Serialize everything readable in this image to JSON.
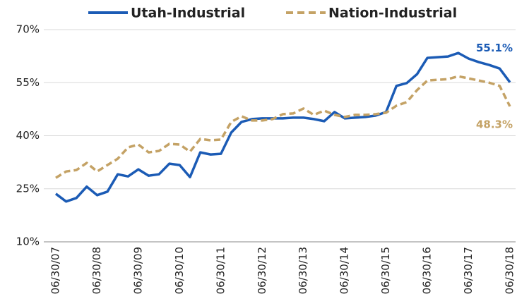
{
  "chart_data": {
    "type": "line",
    "categories": [
      "06/30/07",
      null,
      null,
      null,
      "06/30/08",
      null,
      null,
      null,
      "06/30/09",
      null,
      null,
      null,
      "06/30/10",
      null,
      null,
      null,
      "06/30/11",
      null,
      null,
      null,
      "06/30/12",
      null,
      null,
      null,
      "06/30/13",
      null,
      null,
      null,
      "06/30/14",
      null,
      null,
      null,
      "06/30/15",
      null,
      null,
      null,
      "06/30/16",
      null,
      null,
      null,
      "06/30/17",
      null,
      null,
      null,
      "06/30/18"
    ],
    "series": [
      {
        "name": "Utah-Industrial",
        "color": "#1b5bb5",
        "dash": false,
        "values": [
          23.6,
          21.4,
          22.4,
          25.6,
          23.2,
          24.2,
          29.1,
          28.5,
          30.5,
          28.7,
          29.1,
          32.1,
          31.7,
          28.3,
          35.3,
          34.7,
          34.9,
          40.9,
          43.9,
          44.7,
          44.9,
          44.9,
          44.9,
          45.1,
          45.1,
          44.7,
          44.1,
          46.7,
          44.9,
          45.1,
          45.3,
          45.7,
          46.7,
          54.1,
          54.9,
          57.4,
          62.0,
          62.2,
          62.4,
          63.4,
          61.8,
          60.8,
          60.0,
          59.0,
          55.1
        ],
        "value_labels": [
          null,
          null,
          null,
          null,
          null,
          null,
          null,
          null,
          null,
          null,
          null,
          null,
          null,
          null,
          null,
          null,
          null,
          null,
          null,
          null,
          null,
          null,
          null,
          null,
          null,
          null,
          null,
          null,
          null,
          null,
          null,
          null,
          null,
          null,
          null,
          null,
          null,
          null,
          null,
          null,
          null,
          null,
          null,
          null,
          "55.1%"
        ]
      },
      {
        "name": "Nation-Industrial",
        "color": "#c4a265",
        "dash": true,
        "values": [
          28.1,
          29.9,
          30.3,
          32.3,
          29.9,
          31.7,
          33.5,
          36.7,
          37.5,
          35.3,
          35.7,
          37.7,
          37.5,
          35.5,
          39.1,
          38.7,
          38.9,
          43.9,
          45.5,
          44.3,
          44.3,
          44.7,
          46.1,
          46.3,
          47.7,
          45.9,
          47.1,
          45.9,
          45.3,
          45.9,
          45.9,
          46.1,
          46.5,
          48.5,
          49.5,
          52.9,
          55.6,
          55.8,
          56.0,
          56.8,
          56.2,
          55.6,
          55.0,
          54.1,
          48.3
        ],
        "value_labels": [
          null,
          null,
          null,
          null,
          null,
          null,
          null,
          null,
          null,
          null,
          null,
          null,
          null,
          null,
          null,
          null,
          null,
          null,
          null,
          null,
          null,
          null,
          null,
          null,
          null,
          null,
          null,
          null,
          null,
          null,
          null,
          null,
          null,
          null,
          null,
          null,
          null,
          null,
          null,
          null,
          null,
          null,
          null,
          null,
          "48.3%"
        ]
      }
    ],
    "ylim": [
      10,
      70
    ],
    "yticks": [
      {
        "value": 10,
        "label": "10%"
      },
      {
        "value": 25,
        "label": "25%"
      },
      {
        "value": 40,
        "label": "40%"
      },
      {
        "value": 55,
        "label": "55%"
      },
      {
        "value": 70,
        "label": "70%"
      }
    ],
    "grid": true,
    "legend": "top"
  }
}
